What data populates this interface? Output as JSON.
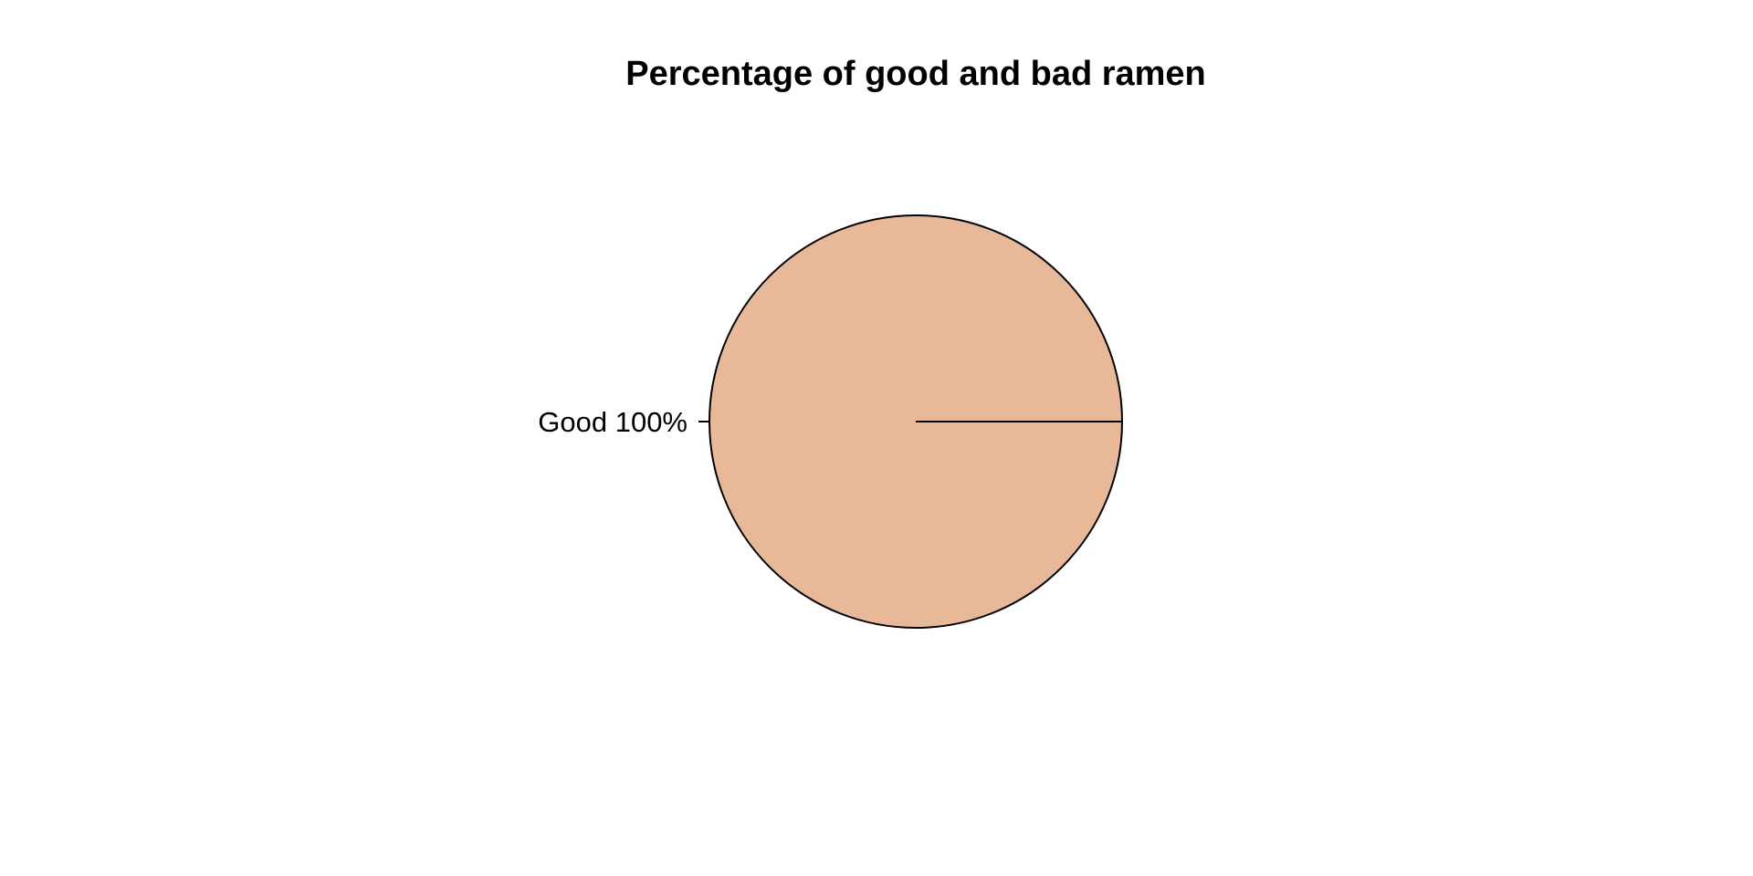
{
  "chart_data": {
    "type": "pie",
    "title": "Percentage of good and bad ramen",
    "categories": [
      "Good"
    ],
    "values": [
      100
    ],
    "labels": [
      "Good 100%"
    ],
    "colors": [
      "#E8B999"
    ],
    "outline_color": "#000000"
  }
}
